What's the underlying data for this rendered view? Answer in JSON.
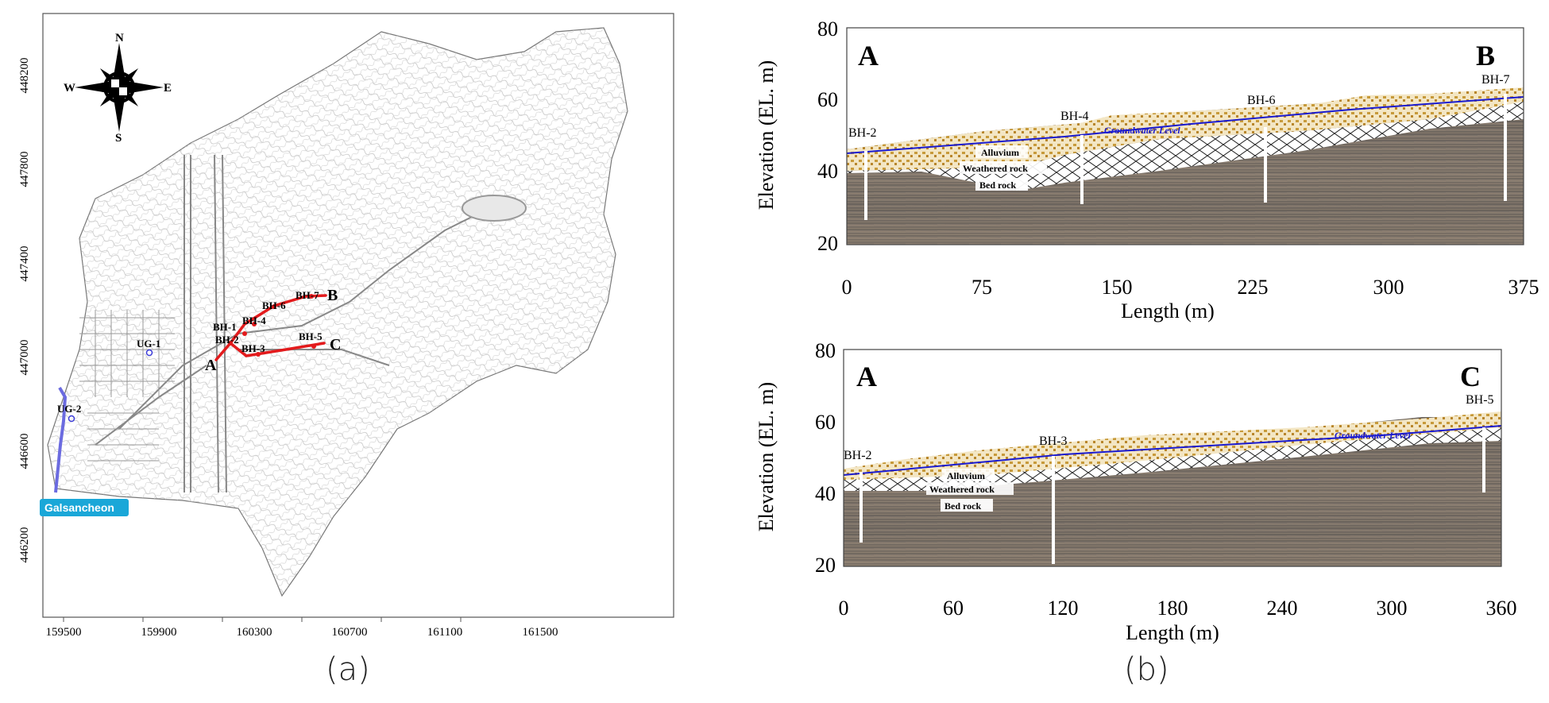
{
  "map": {
    "compass": {
      "n": "N",
      "s": "S",
      "e": "E",
      "w": "W"
    },
    "x_ticks": [
      "159500",
      "159900",
      "160300",
      "160700",
      "161100",
      "161500"
    ],
    "y_ticks": [
      "448200",
      "447800",
      "447400",
      "447000",
      "446600",
      "446200"
    ],
    "labels": {
      "a": "A",
      "b": "B",
      "c": "C",
      "bh1": "BH-1",
      "bh2": "BH-2",
      "bh3": "BH-3",
      "bh4": "BH-4",
      "bh5": "BH-5",
      "bh6": "BH-6",
      "bh7": "BH-7",
      "ug1": "UG-1",
      "ug2": "UG-2",
      "river": "Galsancheon"
    },
    "river_color": "#1aa7d8",
    "section_color": "#e31a1c"
  },
  "profiles": [
    {
      "start": "A",
      "end": "B",
      "ylabel": "Elevation (EL. m)",
      "xlabel": "Length (m)",
      "x_ticks": [
        "0",
        "75",
        "150",
        "225",
        "300",
        "375"
      ],
      "y_ticks": [
        "80",
        "60",
        "40",
        "20"
      ],
      "boreholes": [
        "BH-2",
        "BH-4",
        "BH-6",
        "BH-7"
      ],
      "layers": {
        "alluvium": "Alluvium",
        "weathered": "Weathered rock",
        "bed": "Bed rock",
        "gw": "Groundwater Level"
      }
    },
    {
      "start": "A",
      "end": "C",
      "ylabel": "Elevation (EL. m)",
      "xlabel": "Length (m)",
      "x_ticks": [
        "0",
        "60",
        "120",
        "180",
        "240",
        "300",
        "360"
      ],
      "y_ticks": [
        "80",
        "60",
        "40",
        "20"
      ],
      "boreholes": [
        "BH-2",
        "BH-3",
        "BH-5"
      ],
      "layers": {
        "alluvium": "Alluvium",
        "weathered": "Weathered rock",
        "bed": "Bed rock",
        "gw": "Groundwater Level"
      }
    }
  ],
  "captions": {
    "a": "(a)",
    "b": "(b)"
  }
}
